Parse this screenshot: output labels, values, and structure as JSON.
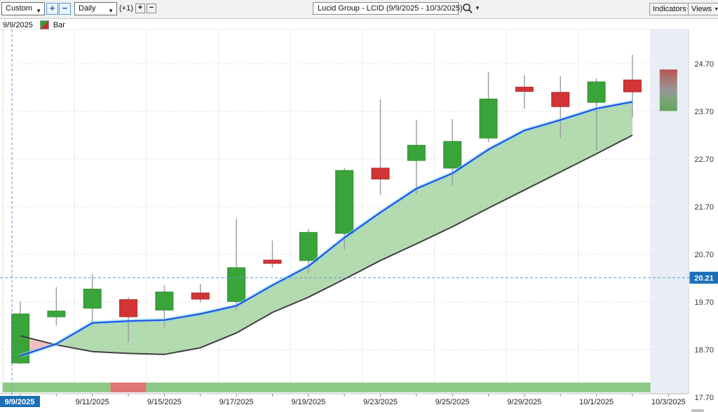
{
  "toolbar": {
    "range_selector": "Custom",
    "zoom_in_label": "+",
    "zoom_out_label": "−",
    "period_selector": "Daily",
    "offset_label": "(+1)",
    "bar_add_label": "+",
    "bar_remove_label": "−",
    "symbol_title": "Lucid Group - LCID (9/9/2025 - 10/3/2025)",
    "indicators_label": "Indicators",
    "views_label": "Views"
  },
  "legend": {
    "date": "9/9/2025",
    "series_label": "Bar"
  },
  "chart_data": {
    "type": "candlestick",
    "title": "Lucid Group - LCID (9/9/2025 - 10/3/2025)",
    "ylim": [
      17.7,
      24.7
    ],
    "grid": true,
    "y_axis": {
      "side": "right",
      "ticks": [
        24.7,
        23.7,
        22.7,
        21.7,
        20.7,
        19.7,
        18.7,
        17.7
      ],
      "tick_labels": [
        "24.70",
        "23.70",
        "22.70",
        "21.70",
        "20.70",
        "19.70",
        "18.70",
        "17.70"
      ]
    },
    "x_axis": {
      "labeled_indices": [
        0,
        2,
        4,
        6,
        8,
        10,
        12,
        14,
        16,
        18
      ],
      "labels": [
        "9/9/2025",
        "9/11/2025",
        "9/15/2025",
        "9/17/2025",
        "9/19/2025",
        "9/23/2025",
        "9/25/2025",
        "9/29/2025",
        "10/1/2025",
        "10/3/2025"
      ]
    },
    "crosshair": {
      "date_label": "9/9/2025",
      "price_label": "20.21",
      "price": 20.21,
      "candle_index": 0
    },
    "candles": [
      {
        "date": "9/9/2025",
        "open": 18.42,
        "high": 19.71,
        "low": 18.39,
        "close": 19.45,
        "dir": "up"
      },
      {
        "date": "9/10/2025",
        "open": 19.39,
        "high": 20.01,
        "low": 19.2,
        "close": 19.51,
        "dir": "up"
      },
      {
        "date": "9/11/2025",
        "open": 19.57,
        "high": 20.28,
        "low": 19.2,
        "close": 19.97,
        "dir": "up"
      },
      {
        "date": "9/12/2025",
        "open": 19.75,
        "high": 19.8,
        "low": 18.85,
        "close": 19.39,
        "dir": "down"
      },
      {
        "date": "9/15/2025",
        "open": 19.53,
        "high": 20.05,
        "low": 19.17,
        "close": 19.91,
        "dir": "up"
      },
      {
        "date": "9/16/2025",
        "open": 19.89,
        "high": 20.08,
        "low": 19.69,
        "close": 19.76,
        "dir": "down"
      },
      {
        "date": "9/17/2025",
        "open": 19.71,
        "high": 21.45,
        "low": 19.52,
        "close": 20.42,
        "dir": "up"
      },
      {
        "date": "9/18/2025",
        "open": 20.58,
        "high": 20.99,
        "low": 20.42,
        "close": 20.51,
        "dir": "down"
      },
      {
        "date": "9/19/2025",
        "open": 20.57,
        "high": 21.23,
        "low": 20.3,
        "close": 21.16,
        "dir": "up"
      },
      {
        "date": "9/22/2025",
        "open": 21.14,
        "high": 22.52,
        "low": 20.8,
        "close": 22.46,
        "dir": "up"
      },
      {
        "date": "9/23/2025",
        "open": 22.51,
        "high": 23.95,
        "low": 21.95,
        "close": 22.28,
        "dir": "down"
      },
      {
        "date": "9/24/2025",
        "open": 22.67,
        "high": 23.52,
        "low": 21.96,
        "close": 22.99,
        "dir": "up"
      },
      {
        "date": "9/25/2025",
        "open": 22.51,
        "high": 23.54,
        "low": 22.14,
        "close": 23.07,
        "dir": "up"
      },
      {
        "date": "9/26/2025",
        "open": 23.14,
        "high": 24.52,
        "low": 23.05,
        "close": 23.96,
        "dir": "up"
      },
      {
        "date": "9/29/2025",
        "open": 24.21,
        "high": 24.46,
        "low": 23.76,
        "close": 24.12,
        "dir": "down"
      },
      {
        "date": "9/30/2025",
        "open": 24.1,
        "high": 24.44,
        "low": 23.13,
        "close": 23.8,
        "dir": "down"
      },
      {
        "date": "10/1/2025",
        "open": 23.89,
        "high": 24.39,
        "low": 22.88,
        "close": 24.32,
        "dir": "up"
      },
      {
        "date": "10/2/2025",
        "open": 24.36,
        "high": 24.89,
        "low": 23.57,
        "close": 24.11,
        "dir": "down"
      }
    ],
    "last_bar": {
      "date": "10/3/2025",
      "top": 24.58,
      "bottom": 23.71,
      "style": "gradient-red-to-green",
      "column_highlighted": true
    },
    "overlays": {
      "upper_line": {
        "name": "fast-band-line",
        "color": "#2152e6",
        "values": [
          18.57,
          18.82,
          19.26,
          19.3,
          19.32,
          19.45,
          19.62,
          20.05,
          20.45,
          21.05,
          21.58,
          22.08,
          22.4,
          22.9,
          23.3,
          23.52,
          23.76,
          23.9
        ]
      },
      "lower_line": {
        "name": "slow-band-line",
        "color": "#3f3f3f",
        "values": [
          18.99,
          18.8,
          18.66,
          18.62,
          18.6,
          18.74,
          19.05,
          19.48,
          19.8,
          20.18,
          20.57,
          20.92,
          21.28,
          21.67,
          22.05,
          22.43,
          22.81,
          23.2
        ]
      },
      "fill_bullish_color": "rgba(118,190,112,0.55)",
      "fill_bearish_color": "rgba(233,128,128,0.50)"
    },
    "sentiment_strip": {
      "segments": [
        {
          "from_index": 0,
          "to_index": 2,
          "color": "green"
        },
        {
          "from_index": 3,
          "to_index": 3,
          "color": "red"
        },
        {
          "from_index": 4,
          "to_index": 17,
          "color": "green"
        }
      ],
      "green_color": "#8cc987",
      "red_color": "#e07676"
    },
    "colors": {
      "candle_up": "#3aa43a",
      "candle_up_border": "#2e8f2e",
      "candle_down": "#d23535",
      "candle_down_border": "#ae2a2a",
      "wick": "#9b9b9b",
      "crosshair": "#5b9bd5",
      "badge": "#1b6fb9",
      "highlight_band": "#e9eef6",
      "grid_v": "#ececec",
      "grid_h": "#dcdcdc"
    }
  }
}
